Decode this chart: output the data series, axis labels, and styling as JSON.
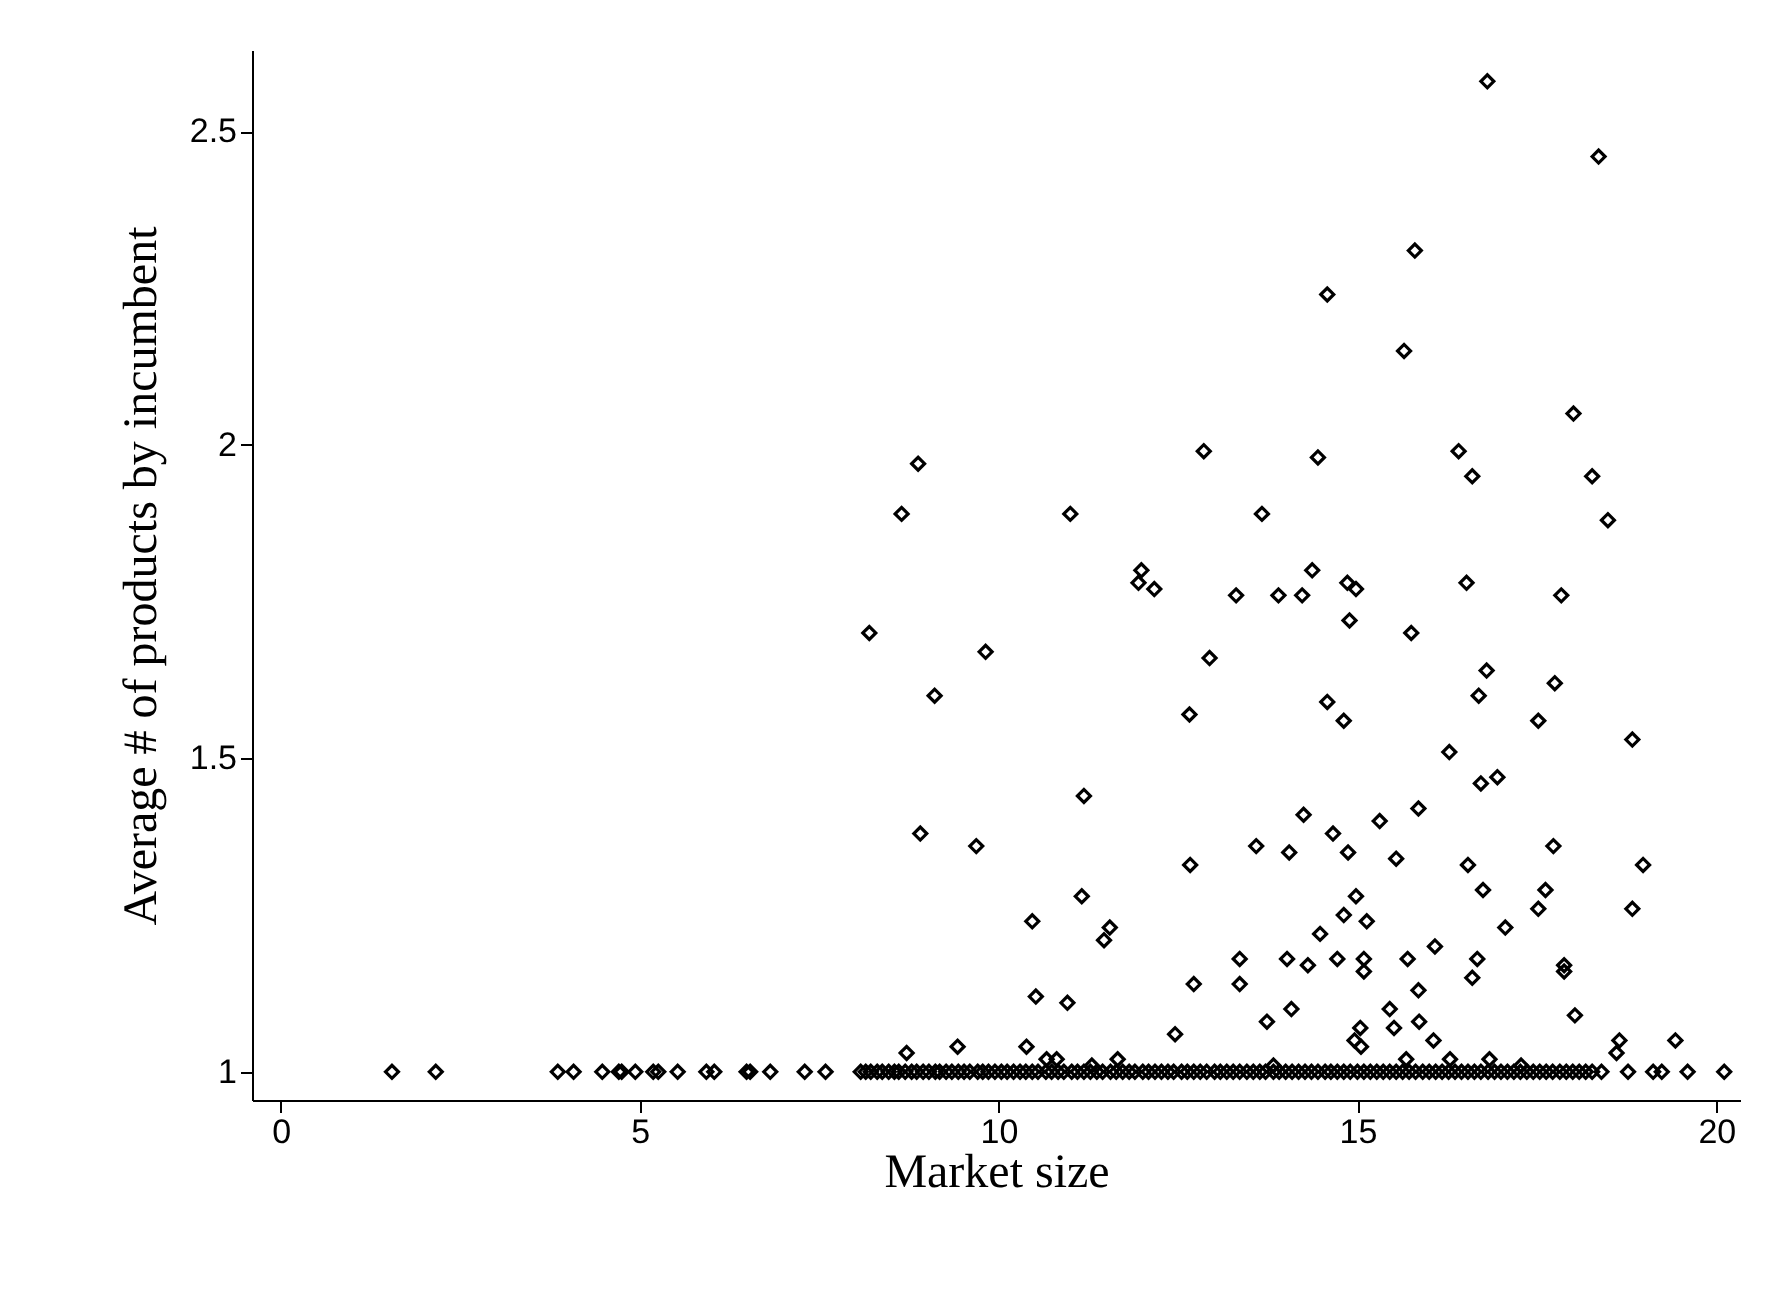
{
  "chart_data": {
    "type": "scatter",
    "xlabel": "Market size",
    "ylabel": "Average # of products by incumbent",
    "xlim": [
      -0.4,
      20.33
    ],
    "ylim": [
      0.955,
      2.63
    ],
    "xticks": [
      0,
      5,
      10,
      15,
      20
    ],
    "yticks": [
      1,
      1.5,
      2,
      2.5
    ],
    "grid": false,
    "marker": "diamond",
    "series": [
      {
        "color": "#000000",
        "x": [
          16.81,
          18.36,
          15.8,
          14.58,
          15.65,
          18.01,
          12.86,
          14.45,
          16.41,
          16.6,
          18.27,
          18.49,
          11.0,
          13.67,
          8.88,
          8.65,
          8.2,
          9.82,
          9.11,
          8.91,
          9.69,
          10.47,
          10.52,
          8.72,
          9.43,
          10.39,
          11.99,
          11.95,
          12.17,
          13.31,
          13.9,
          14.23,
          14.37,
          14.86,
          14.98,
          14.89,
          16.52,
          17.84,
          15.75,
          12.94,
          16.8,
          16.69,
          17.75,
          12.66,
          14.58,
          14.81,
          17.52,
          18.83,
          16.28,
          16.72,
          16.95,
          11.19,
          15.85,
          14.25,
          15.31,
          14.66,
          13.59,
          14.05,
          14.87,
          15.54,
          17.73,
          12.67,
          16.54,
          18.98,
          16.75,
          17.62,
          17.52,
          18.83,
          14.98,
          14.81,
          15.13,
          17.06,
          11.16,
          11.55,
          11.47,
          14.48,
          16.08,
          13.36,
          14.02,
          14.31,
          14.72,
          15.09,
          15.09,
          15.7,
          16.67,
          16.6,
          17.88,
          17.88,
          10.96,
          12.72,
          13.36,
          15.85,
          13.74,
          14.08,
          15.45,
          15.51,
          15.86,
          15.04,
          14.96,
          15.05,
          16.06,
          18.03,
          12.46,
          18.65,
          18.61,
          19.43,
          10.67,
          10.81,
          11.3,
          11.66,
          13.83,
          15.68,
          16.29,
          16.84,
          17.28,
          1.55,
          2.16,
          3.86,
          4.08,
          4.48,
          4.71,
          4.75,
          4.94,
          5.19,
          5.26,
          5.53,
          5.93,
          6.04,
          6.49,
          6.54,
          6.82,
          7.3,
          7.59,
          8.08,
          8.15,
          8.22,
          8.31,
          8.38,
          8.47,
          8.55,
          8.61,
          8.7,
          8.79,
          8.86,
          8.95,
          9.03,
          9.12,
          9.18,
          9.27,
          9.35,
          9.44,
          9.52,
          9.6,
          9.71,
          9.78,
          9.86,
          9.95,
          10.04,
          10.12,
          10.21,
          10.3,
          10.38,
          10.47,
          10.55,
          10.66,
          10.74,
          10.83,
          10.91,
          11.02,
          11.1,
          11.19,
          11.28,
          11.37,
          11.45,
          11.56,
          11.64,
          11.73,
          11.82,
          11.9,
          12.01,
          12.09,
          12.18,
          12.27,
          12.36,
          12.44,
          12.55,
          12.63,
          12.72,
          12.81,
          12.9,
          13.01,
          13.09,
          13.18,
          13.27,
          13.36,
          13.46,
          13.55,
          13.64,
          13.72,
          13.83,
          13.91,
          14.0,
          14.09,
          14.18,
          14.27,
          14.36,
          14.45,
          14.55,
          14.63,
          14.72,
          14.81,
          14.9,
          15.0,
          15.09,
          15.18,
          15.27,
          15.36,
          15.45,
          15.54,
          15.63,
          15.72,
          15.81,
          15.91,
          16.0,
          16.09,
          16.18,
          16.27,
          16.36,
          16.45,
          16.54,
          16.63,
          16.72,
          16.82,
          16.91,
          17.0,
          17.09,
          17.18,
          17.27,
          17.36,
          17.45,
          17.54,
          17.63,
          17.72,
          17.82,
          17.91,
          18.0,
          18.09,
          18.18,
          18.27,
          18.4,
          18.77,
          19.12,
          19.24,
          19.6,
          20.11
        ],
        "values": [
          2.58,
          2.46,
          2.31,
          2.24,
          2.15,
          2.05,
          1.99,
          1.98,
          1.99,
          1.95,
          1.95,
          1.88,
          1.89,
          1.89,
          1.97,
          1.89,
          1.7,
          1.67,
          1.6,
          1.38,
          1.36,
          1.24,
          1.12,
          1.03,
          1.04,
          1.04,
          1.8,
          1.78,
          1.77,
          1.76,
          1.76,
          1.76,
          1.8,
          1.78,
          1.77,
          1.72,
          1.78,
          1.76,
          1.7,
          1.66,
          1.64,
          1.6,
          1.62,
          1.57,
          1.59,
          1.56,
          1.56,
          1.53,
          1.51,
          1.46,
          1.47,
          1.44,
          1.42,
          1.41,
          1.4,
          1.38,
          1.36,
          1.35,
          1.35,
          1.34,
          1.36,
          1.33,
          1.33,
          1.33,
          1.29,
          1.29,
          1.26,
          1.26,
          1.28,
          1.25,
          1.24,
          1.23,
          1.28,
          1.23,
          1.21,
          1.22,
          1.2,
          1.18,
          1.18,
          1.17,
          1.18,
          1.18,
          1.16,
          1.18,
          1.18,
          1.15,
          1.17,
          1.16,
          1.11,
          1.14,
          1.14,
          1.13,
          1.08,
          1.1,
          1.1,
          1.07,
          1.08,
          1.07,
          1.05,
          1.04,
          1.05,
          1.09,
          1.06,
          1.05,
          1.03,
          1.05,
          1.02,
          1.02,
          1.01,
          1.02,
          1.01,
          1.02,
          1.02,
          1.02,
          1.01,
          1,
          1,
          1,
          1,
          1,
          1,
          1,
          1,
          1,
          1,
          1,
          1,
          1,
          1,
          1,
          1,
          1,
          1,
          1,
          1,
          1,
          1,
          1,
          1,
          1,
          1,
          1,
          1,
          1,
          1,
          1,
          1,
          1,
          1,
          1,
          1,
          1,
          1,
          1,
          1,
          1,
          1,
          1,
          1,
          1,
          1,
          1,
          1,
          1,
          1,
          1,
          1,
          1,
          1,
          1,
          1,
          1,
          1,
          1,
          1,
          1,
          1,
          1,
          1,
          1,
          1,
          1,
          1,
          1,
          1,
          1,
          1,
          1,
          1,
          1,
          1,
          1,
          1,
          1,
          1,
          1,
          1,
          1,
          1,
          1,
          1,
          1,
          1,
          1,
          1,
          1,
          1,
          1,
          1,
          1,
          1,
          1,
          1,
          1,
          1,
          1,
          1,
          1,
          1,
          1,
          1,
          1,
          1,
          1,
          1,
          1,
          1,
          1,
          1,
          1,
          1,
          1,
          1,
          1,
          1,
          1,
          1,
          1,
          1,
          1,
          1,
          1,
          1,
          1,
          1,
          1,
          1,
          1,
          1,
          1,
          1,
          1,
          1,
          1,
          1
        ]
      }
    ]
  }
}
